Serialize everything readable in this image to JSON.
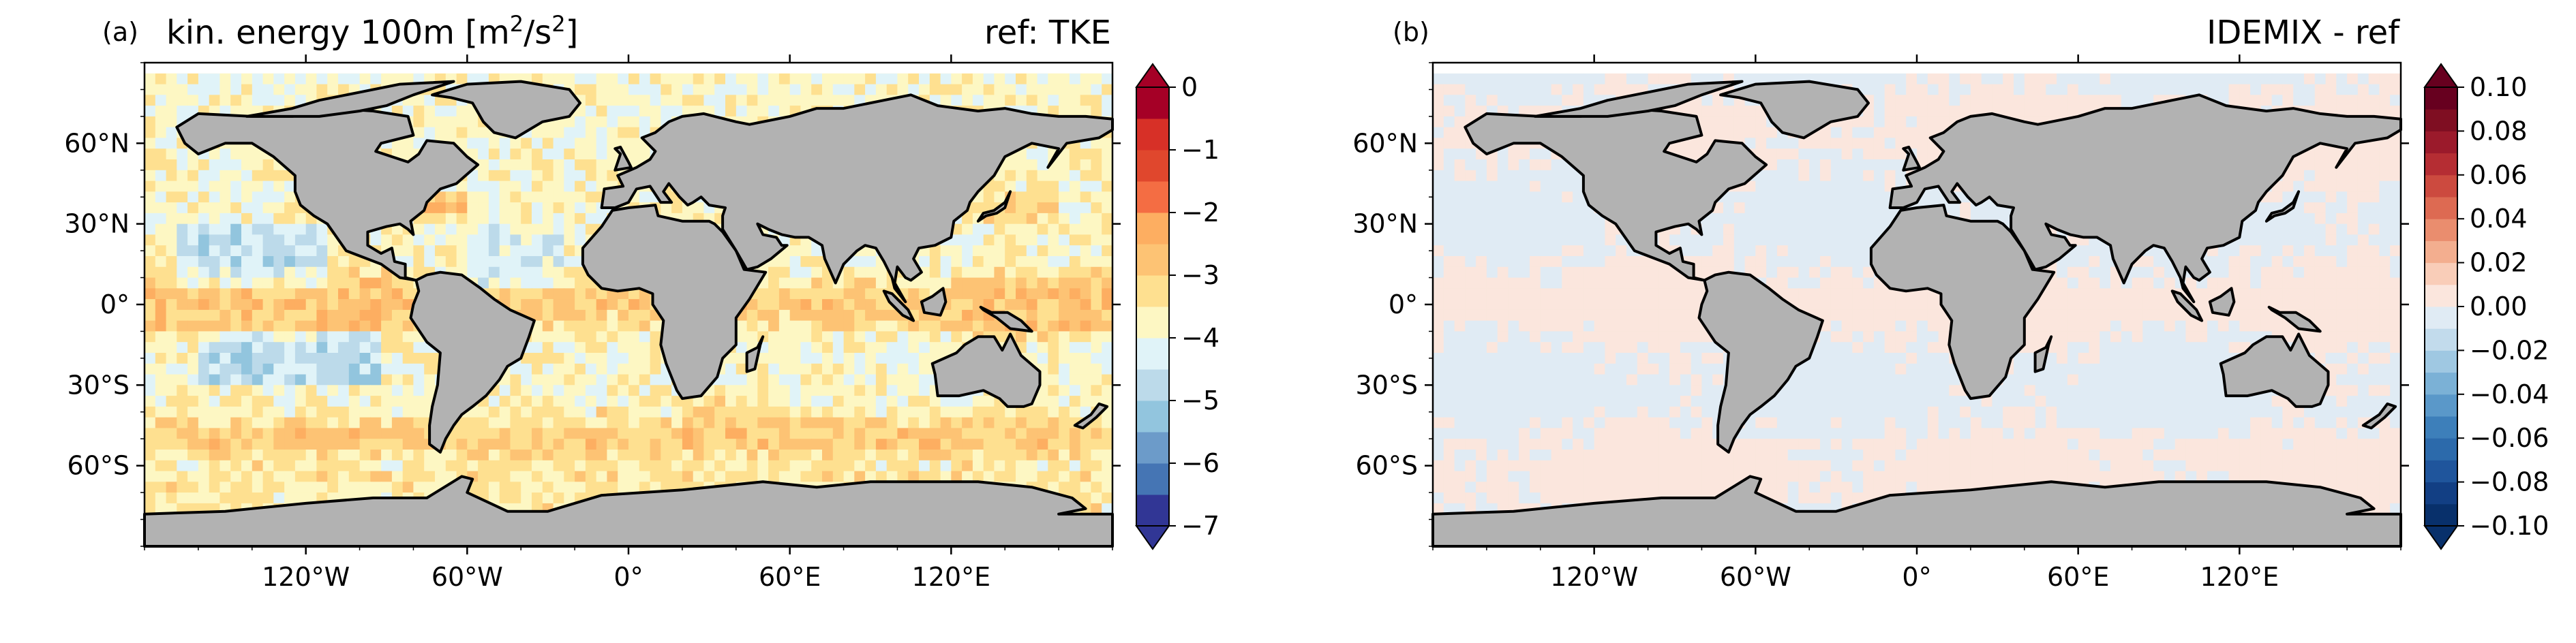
{
  "chart_data": [
    {
      "type": "heatmap",
      "panel_label": "(a)",
      "title_left_main": "kin. energy 100m [m",
      "title_left_sup1": "2",
      "title_left_mid": "/s",
      "title_left_sup2": "2",
      "title_left_end": "]",
      "title_right": "ref: TKE",
      "x_ticks": [
        "120°W",
        "60°W",
        "0°",
        "60°E",
        "120°E"
      ],
      "x_tick_values": [
        -120,
        -60,
        0,
        60,
        120
      ],
      "y_ticks": [
        "60°N",
        "30°N",
        "0°",
        "30°S",
        "60°S"
      ],
      "y_tick_values": [
        60,
        30,
        0,
        -30,
        -60
      ],
      "xlim": [
        -180,
        180
      ],
      "ylim": [
        -90,
        90
      ],
      "colorbar": {
        "ticks": [
          "0",
          "−1",
          "−2",
          "−3",
          "−4",
          "−5",
          "−6",
          "−7"
        ],
        "tick_values": [
          0,
          -1,
          -2,
          -3,
          -4,
          -5,
          -6,
          -7
        ],
        "range": [
          -7,
          0
        ],
        "levels": 14,
        "extend": "both",
        "cmap": "RdYlBu_r",
        "colors": [
          "#313695",
          "#4575b4",
          "#6c9bc9",
          "#92c5de",
          "#bcdaea",
          "#e0f3f8",
          "#fdf7c3",
          "#fee090",
          "#fdc374",
          "#fdae61",
          "#f46d43",
          "#e0472d",
          "#d73027",
          "#a50026"
        ]
      }
    },
    {
      "type": "heatmap",
      "panel_label": "(b)",
      "title_right": "IDEMIX - ref",
      "x_ticks": [
        "120°W",
        "60°W",
        "0°",
        "60°E",
        "120°E"
      ],
      "x_tick_values": [
        -120,
        -60,
        0,
        60,
        120
      ],
      "y_ticks": [
        "60°N",
        "30°N",
        "0°",
        "30°S",
        "60°S"
      ],
      "y_tick_values": [
        60,
        30,
        0,
        -30,
        -60
      ],
      "xlim": [
        -180,
        180
      ],
      "ylim": [
        -90,
        90
      ],
      "colorbar": {
        "ticks": [
          "0.10",
          "0.08",
          "0.06",
          "0.04",
          "0.02",
          "0.00",
          "−0.02",
          "−0.04",
          "−0.06",
          "−0.08",
          "−0.10"
        ],
        "tick_values": [
          0.1,
          0.08,
          0.06,
          0.04,
          0.02,
          0.0,
          -0.02,
          -0.04,
          -0.06,
          -0.08,
          -0.1
        ],
        "range": [
          -0.1,
          0.1
        ],
        "levels": 20,
        "extend": "both",
        "cmap": "RdBu_r",
        "colors": [
          "#08306b",
          "#123f84",
          "#1f559c",
          "#2c6aab",
          "#3d7fba",
          "#5a98c9",
          "#7bb1d6",
          "#9fc8e2",
          "#c2dbec",
          "#e0ebf4",
          "#fbe6dd",
          "#f9cdb8",
          "#f3ae8f",
          "#ea8d6e",
          "#dd6a52",
          "#cc4a3f",
          "#b52d33",
          "#9b1a2b",
          "#7f0e22",
          "#67001f"
        ]
      }
    }
  ],
  "colors": {
    "land": "#b2b2b2",
    "coast": "#000000",
    "background": "#ffffff"
  }
}
